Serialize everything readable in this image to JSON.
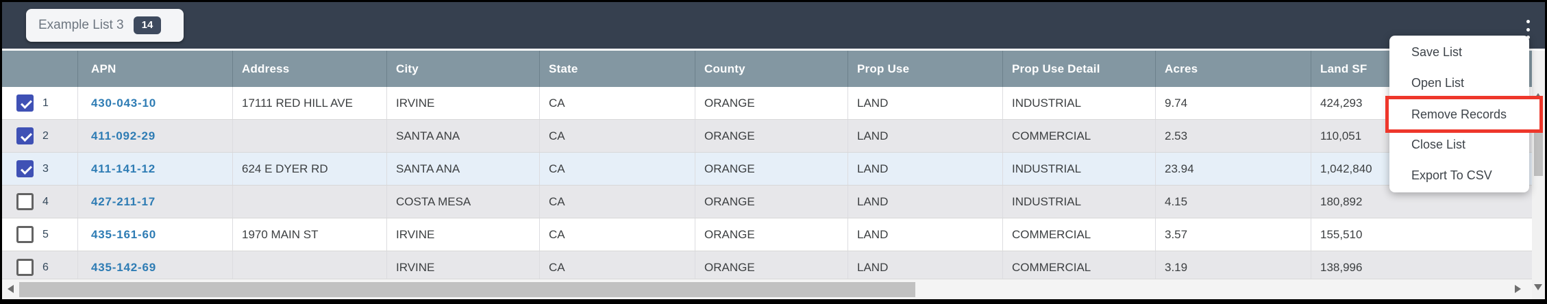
{
  "topbar": {
    "tab_label": "Example List 3",
    "badge_count": "14",
    "kebab_icon": "vertical-dots-menu"
  },
  "menu": {
    "items": [
      {
        "label": "Save List",
        "highlighted": false
      },
      {
        "label": "Open List",
        "highlighted": false
      },
      {
        "label": "Remove Records",
        "highlighted": true
      },
      {
        "label": "Close List",
        "highlighted": false
      },
      {
        "label": "Export To CSV",
        "highlighted": false
      }
    ]
  },
  "table": {
    "columns": [
      "",
      "APN",
      "Address",
      "City",
      "State",
      "County",
      "Prop Use",
      "Prop Use Detail",
      "Acres",
      "Land SF"
    ],
    "rows": [
      {
        "num": "1",
        "checked": true,
        "highlighted": false,
        "apn": "430-043-10",
        "address": "17111 RED HILL AVE",
        "city": "IRVINE",
        "state": "CA",
        "county": "ORANGE",
        "prop_use": "LAND",
        "prop_use_detail": "INDUSTRIAL",
        "acres": "9.74",
        "land_sf": "424,293"
      },
      {
        "num": "2",
        "checked": true,
        "highlighted": false,
        "apn": "411-092-29",
        "address": "",
        "city": "SANTA ANA",
        "state": "CA",
        "county": "ORANGE",
        "prop_use": "LAND",
        "prop_use_detail": "COMMERCIAL",
        "acres": "2.53",
        "land_sf": "110,051"
      },
      {
        "num": "3",
        "checked": true,
        "highlighted": true,
        "apn": "411-141-12",
        "address": "624 E DYER RD",
        "city": "SANTA ANA",
        "state": "CA",
        "county": "ORANGE",
        "prop_use": "LAND",
        "prop_use_detail": "INDUSTRIAL",
        "acres": "23.94",
        "land_sf": "1,042,840"
      },
      {
        "num": "4",
        "checked": false,
        "highlighted": false,
        "apn": "427-211-17",
        "address": "",
        "city": "COSTA MESA",
        "state": "CA",
        "county": "ORANGE",
        "prop_use": "LAND",
        "prop_use_detail": "INDUSTRIAL",
        "acres": "4.15",
        "land_sf": "180,892"
      },
      {
        "num": "5",
        "checked": false,
        "highlighted": false,
        "apn": "435-161-60",
        "address": "1970 MAIN ST",
        "city": "IRVINE",
        "state": "CA",
        "county": "ORANGE",
        "prop_use": "LAND",
        "prop_use_detail": "COMMERCIAL",
        "acres": "3.57",
        "land_sf": "155,510"
      },
      {
        "num": "6",
        "checked": false,
        "highlighted": false,
        "apn": "435-142-69",
        "address": "",
        "city": "IRVINE",
        "state": "CA",
        "county": "ORANGE",
        "prop_use": "LAND",
        "prop_use_detail": "COMMERCIAL",
        "acres": "3.19",
        "land_sf": "138,996"
      }
    ]
  },
  "colors": {
    "topbar_bg": "#36404f",
    "header_bg": "#8397a2",
    "annotation_highlight": "#ee372b",
    "checked_checkbox": "#3f51b5",
    "apn_link": "#2e7cb4",
    "row_alt_bg": "#e7e7ea",
    "row_selected_bg": "#e6eff8"
  }
}
